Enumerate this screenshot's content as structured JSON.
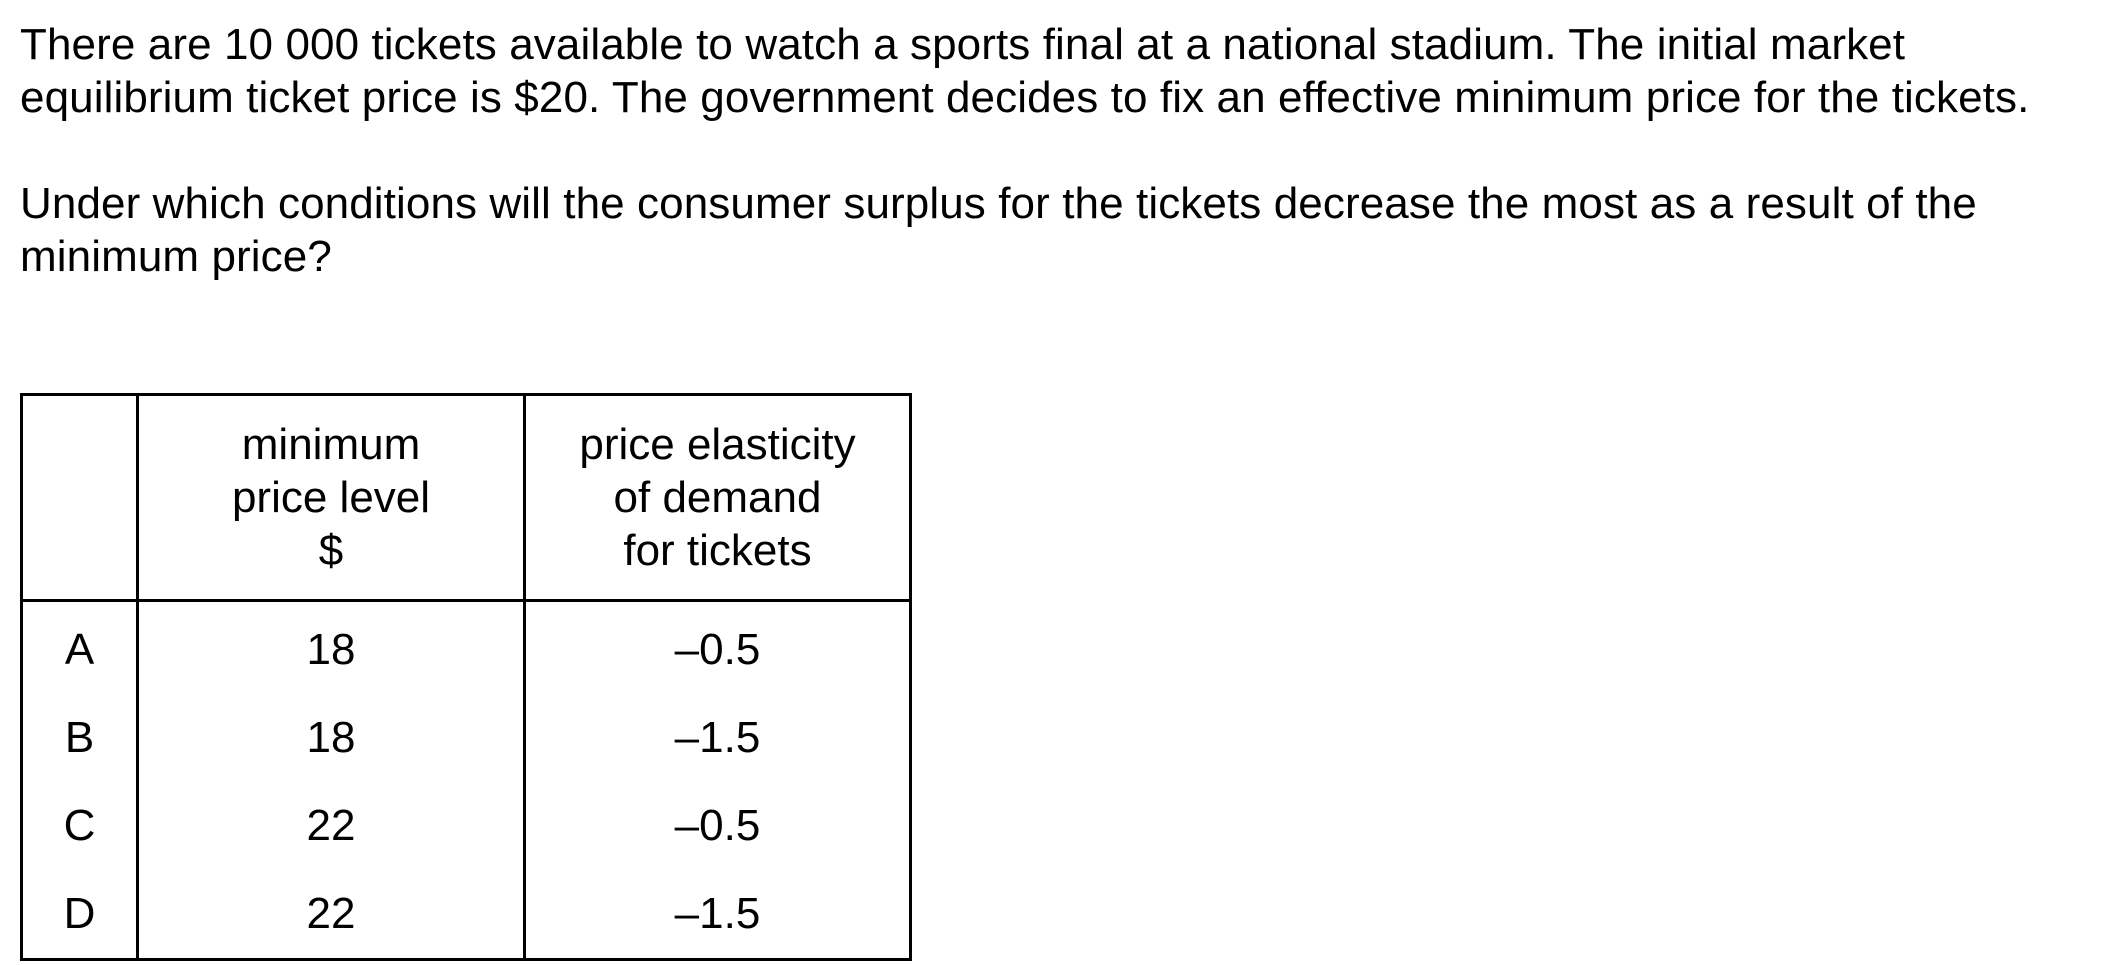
{
  "question": {
    "paragraph1": "There are 10 000 tickets available to watch a sports final at a national stadium. The initial market equilibrium ticket price is $20. The government decides to fix an effective minimum price for the tickets.",
    "paragraph2": "Under which conditions will the consumer surplus for the tickets decrease the most as a result of the minimum price?"
  },
  "table": {
    "headers": {
      "letter": "",
      "price": [
        "minimum",
        "price level",
        "$"
      ],
      "ped": [
        "price elasticity",
        "of demand",
        "for tickets"
      ]
    },
    "rows": [
      {
        "letter": "A",
        "price": "18",
        "ped": "–0.5"
      },
      {
        "letter": "B",
        "price": "18",
        "ped": "–1.5"
      },
      {
        "letter": "C",
        "price": "22",
        "ped": "–0.5"
      },
      {
        "letter": "D",
        "price": "22",
        "ped": "–1.5"
      }
    ]
  }
}
